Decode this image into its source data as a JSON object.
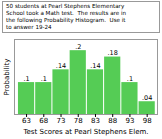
{
  "chart_data": {
    "type": "bar",
    "title": "50 students at Pearl Stephens Elementary\nSchool took a Math test.  The results are in\nthe following Probability Histogram.  Use it\nto answer 19-24",
    "xlabel": "Test Scores at Pearl Stephens Elem.",
    "ylabel": "Probability",
    "x": [
      63,
      68,
      73,
      78,
      83,
      88,
      93,
      98
    ],
    "values": [
      0.1,
      0.1,
      0.14,
      0.2,
      0.14,
      0.18,
      0.1,
      0.04
    ],
    "value_labels": [
      ".1",
      ".1",
      ".14",
      ".2",
      ".14",
      ".18",
      ".1",
      ".04"
    ],
    "data_labels": true,
    "color": "#55cc55",
    "xlim": [
      59.5,
      101
    ],
    "xticks": [
      63,
      68,
      73,
      78,
      83,
      88,
      93,
      98
    ],
    "ylim": [
      0,
      0.235
    ],
    "yticks": [],
    "tick_labels": "x",
    "grid": false
  }
}
